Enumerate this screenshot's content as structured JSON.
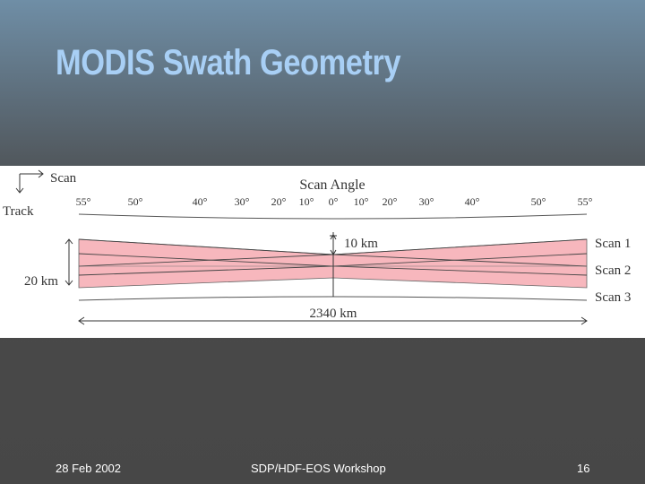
{
  "slide": {
    "title": "MODIS Swath Geometry"
  },
  "diagram": {
    "scan_label": "Scan",
    "track_label": "Track",
    "scan_angle_label": "Scan Angle",
    "angle_ticks": [
      "55°",
      "50°",
      "40°",
      "30°",
      "20°",
      "10°",
      "0°",
      "10°",
      "20°",
      "30°",
      "40°",
      "50°",
      "55°"
    ],
    "center_width_label": "10 km",
    "edge_width_label": "20 km",
    "swath_width_label": "2340 km",
    "scan_labels": [
      "Scan 1",
      "Scan 2",
      "Scan 3"
    ],
    "colors": {
      "swath_fill": "#f7b7bd",
      "line": "#333333",
      "title": "#a8cff5"
    }
  },
  "footer": {
    "date": "28 Feb 2002",
    "event": "SDP/HDF-EOS Workshop",
    "page": "16"
  }
}
